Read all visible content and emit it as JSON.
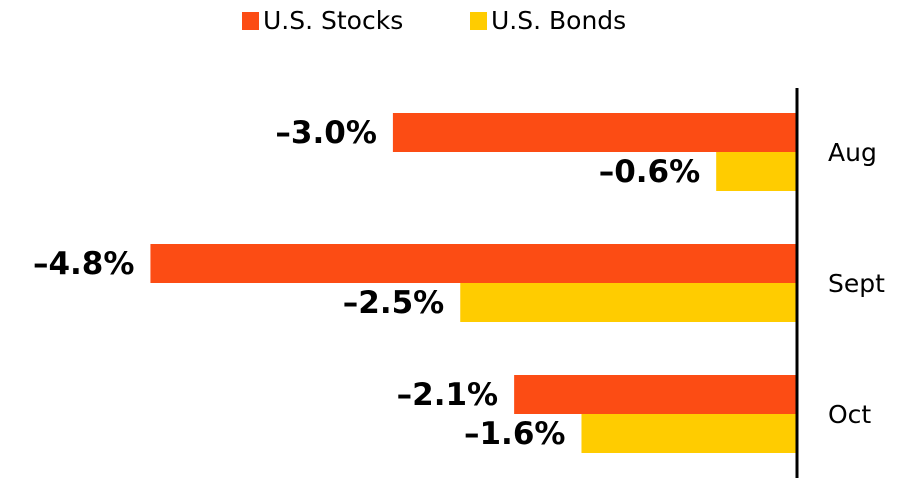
{
  "chart_data": {
    "type": "hbar",
    "categories": [
      "Aug",
      "Sept",
      "Oct"
    ],
    "series": [
      {
        "name": "U.S. Stocks",
        "color": "#fc4c14",
        "values": [
          -3.0,
          -4.8,
          -2.1
        ],
        "value_labels": [
          "–3.0%",
          "–4.8%",
          "–2.1%"
        ]
      },
      {
        "name": "U.S. Bonds",
        "color": "#ffcc00",
        "values": [
          -0.6,
          -2.5,
          -1.6
        ],
        "value_labels": [
          "–0.6%",
          "–2.5%",
          "–1.6%"
        ]
      }
    ],
    "xlim": [
      -5,
      0
    ],
    "legend": "top"
  }
}
